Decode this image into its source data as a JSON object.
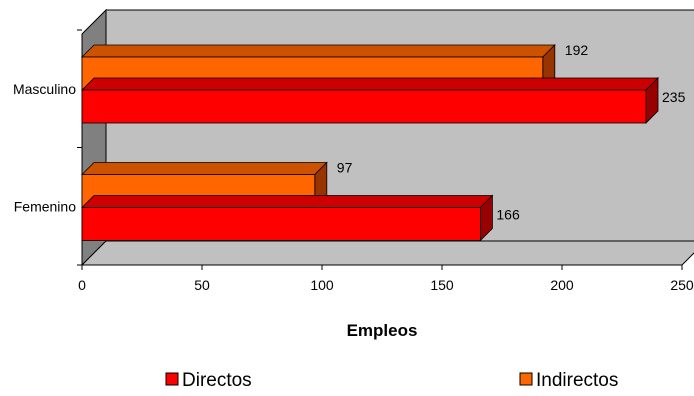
{
  "chart_data": {
    "type": "bar",
    "orientation": "horizontal",
    "style": "3d",
    "categories": [
      "Femenino",
      "Masculino"
    ],
    "series": [
      {
        "name": "Directos",
        "values": [
          166,
          235
        ],
        "color": "#ff0000",
        "side_color": "#990000",
        "top_color": "#cc0000"
      },
      {
        "name": "Indirectos",
        "values": [
          97,
          192
        ],
        "color": "#ff6600",
        "side_color": "#993300",
        "top_color": "#cc5200"
      }
    ],
    "xlabel": "Empleos",
    "xlim": [
      0,
      250
    ],
    "xticks": [
      0,
      50,
      100,
      150,
      200,
      250
    ],
    "grid": false,
    "legend": "bottom",
    "wall_color": "#c0c0c0",
    "floor_color": "#808080"
  }
}
